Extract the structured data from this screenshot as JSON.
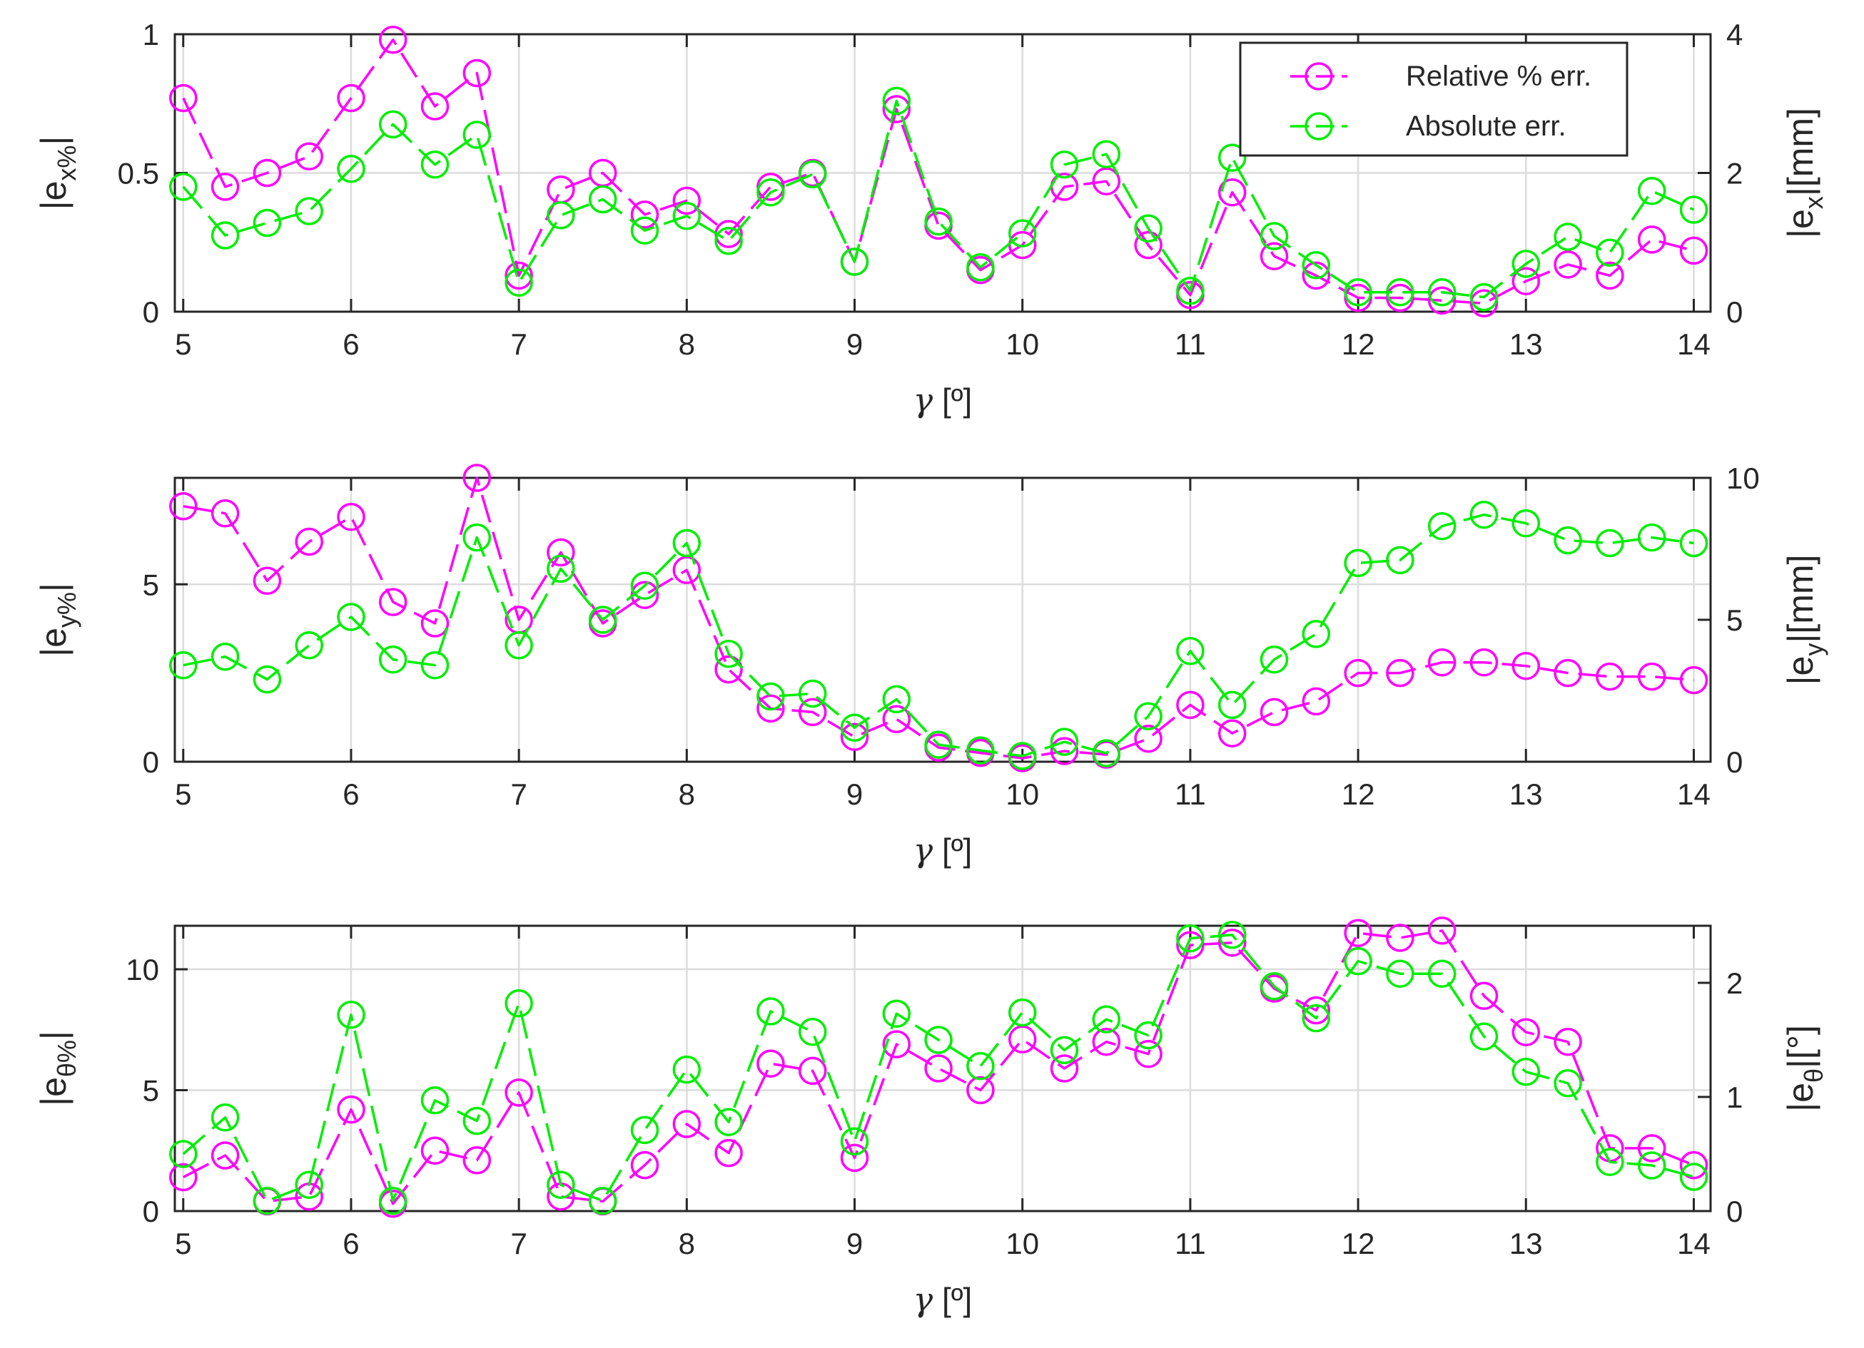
{
  "colors": {
    "relative": "#ff00ff",
    "absolute": "#00ee00",
    "grid": "#dcdcdc",
    "axis": "#262626"
  },
  "legend": {
    "relative": "Relative % err.",
    "absolute": "Absolute err.",
    "placement": "top-right"
  },
  "chart_data": [
    {
      "type": "line",
      "markers": "circle",
      "x": [
        5,
        5.25,
        5.5,
        5.75,
        6,
        6.25,
        6.5,
        6.75,
        7,
        7.25,
        7.5,
        7.75,
        8,
        8.25,
        8.5,
        8.75,
        9,
        9.25,
        9.5,
        9.75,
        10,
        10.25,
        10.5,
        10.75,
        11,
        11.25,
        11.5,
        11.75,
        12,
        12.25,
        12.5,
        12.75,
        13,
        13.25,
        13.5,
        13.75,
        14
      ],
      "xlim": [
        4.95,
        14.1
      ],
      "xticks": [
        5,
        6,
        7,
        8,
        9,
        10,
        11,
        12,
        13,
        14
      ],
      "xlabel": {
        "symbol": "γ",
        "unit": "[º]"
      },
      "ylabel_left": {
        "base": "|e",
        "sub": "x%",
        "end": "|"
      },
      "ylabel_right": {
        "base": "|e",
        "sub": "x",
        "end": "|[mm]"
      },
      "ylim_left": [
        0,
        1
      ],
      "yticks_left": [
        0,
        0.5,
        1
      ],
      "ylim_right": [
        0,
        4
      ],
      "yticks_right": [
        0,
        2,
        4
      ],
      "series": [
        {
          "name": "Relative % err.",
          "axis": "left",
          "values": [
            0.77,
            0.45,
            0.5,
            0.56,
            0.77,
            0.98,
            0.74,
            0.86,
            0.13,
            0.44,
            0.5,
            0.35,
            0.4,
            0.28,
            0.45,
            0.5,
            0.18,
            0.73,
            0.31,
            0.15,
            0.24,
            0.45,
            0.47,
            0.24,
            0.06,
            0.43,
            0.2,
            0.13,
            0.05,
            0.05,
            0.04,
            0.03,
            0.11,
            0.17,
            0.13,
            0.26,
            0.22
          ]
        },
        {
          "name": "Absolute err.",
          "axis": "right",
          "values": [
            1.8,
            1.1,
            1.28,
            1.45,
            2.06,
            2.7,
            2.12,
            2.55,
            0.42,
            1.39,
            1.62,
            1.17,
            1.38,
            1.02,
            1.72,
            1.98,
            0.72,
            3.04,
            1.3,
            0.64,
            1.13,
            2.12,
            2.27,
            1.2,
            0.3,
            2.22,
            1.09,
            0.67,
            0.28,
            0.28,
            0.28,
            0.21,
            0.69,
            1.08,
            0.85,
            1.74,
            1.47
          ]
        }
      ]
    },
    {
      "type": "line",
      "markers": "circle",
      "x": [
        5,
        5.25,
        5.5,
        5.75,
        6,
        6.25,
        6.5,
        6.75,
        7,
        7.25,
        7.5,
        7.75,
        8,
        8.25,
        8.5,
        8.75,
        9,
        9.25,
        9.5,
        9.75,
        10,
        10.25,
        10.5,
        10.75,
        11,
        11.25,
        11.5,
        11.75,
        12,
        12.25,
        12.5,
        12.75,
        13,
        13.25,
        13.5,
        13.75,
        14
      ],
      "xlim": [
        4.95,
        14.1
      ],
      "xticks": [
        5,
        6,
        7,
        8,
        9,
        10,
        11,
        12,
        13,
        14
      ],
      "xlabel": {
        "symbol": "γ",
        "unit": "[º]"
      },
      "ylabel_left": {
        "base": "|e",
        "sub": "y%",
        "end": "|"
      },
      "ylabel_right": {
        "base": "|e",
        "sub": "y",
        "end": "|[mm]"
      },
      "ylim_left": [
        0,
        8
      ],
      "yticks_left": [
        0,
        5
      ],
      "ylim_right": [
        0,
        10
      ],
      "yticks_right": [
        0,
        5,
        10
      ],
      "series": [
        {
          "name": "Relative % err.",
          "axis": "left",
          "values": [
            7.2,
            7.0,
            5.1,
            6.2,
            6.9,
            4.5,
            3.9,
            8.0,
            4.0,
            5.9,
            3.9,
            4.7,
            5.4,
            2.6,
            1.5,
            1.4,
            0.7,
            1.2,
            0.4,
            0.25,
            0.1,
            0.3,
            0.2,
            0.65,
            1.6,
            0.8,
            1.4,
            1.7,
            2.5,
            2.5,
            2.8,
            2.8,
            2.7,
            2.5,
            2.4,
            2.4,
            2.3
          ]
        },
        {
          "name": "Absolute err.",
          "axis": "right",
          "values": [
            3.4,
            3.7,
            2.9,
            4.1,
            5.1,
            3.6,
            3.4,
            7.9,
            4.1,
            6.8,
            5.0,
            6.2,
            7.7,
            3.8,
            2.3,
            2.4,
            1.2,
            2.2,
            0.6,
            0.4,
            0.2,
            0.7,
            0.3,
            1.6,
            3.9,
            2.0,
            3.6,
            4.5,
            7.0,
            7.1,
            8.3,
            8.7,
            8.4,
            7.8,
            7.7,
            7.9,
            7.7
          ]
        }
      ]
    },
    {
      "type": "line",
      "markers": "circle",
      "x": [
        5,
        5.25,
        5.5,
        5.75,
        6,
        6.25,
        6.5,
        6.75,
        7,
        7.25,
        7.5,
        7.75,
        8,
        8.25,
        8.5,
        8.75,
        9,
        9.25,
        9.5,
        9.75,
        10,
        10.25,
        10.5,
        10.75,
        11,
        11.25,
        11.5,
        11.75,
        12,
        12.25,
        12.5,
        12.75,
        13,
        13.25,
        13.5,
        13.75,
        14
      ],
      "xlim": [
        4.95,
        14.1
      ],
      "xticks": [
        5,
        6,
        7,
        8,
        9,
        10,
        11,
        12,
        13,
        14
      ],
      "xlabel": {
        "symbol": "γ",
        "unit": "[º]"
      },
      "ylabel_left": {
        "base": "|e",
        "sub": "θ%",
        "end": "|"
      },
      "ylabel_right": {
        "base": "|e",
        "sub": "θ",
        "end": "|[°]"
      },
      "ylim_left": [
        0,
        11.8
      ],
      "yticks_left": [
        0,
        5,
        10
      ],
      "ylim_right": [
        0,
        2.5
      ],
      "yticks_right": [
        0,
        1,
        2
      ],
      "series": [
        {
          "name": "Relative % err.",
          "axis": "left",
          "values": [
            1.4,
            2.3,
            0.4,
            0.6,
            4.2,
            0.3,
            2.5,
            2.1,
            4.9,
            0.6,
            0.4,
            1.9,
            3.6,
            2.4,
            6.1,
            5.8,
            2.2,
            6.9,
            5.9,
            5.0,
            7.1,
            5.9,
            7.0,
            6.5,
            11.0,
            11.1,
            9.2,
            8.3,
            11.5,
            11.3,
            11.6,
            8.9,
            7.4,
            7.0,
            2.6,
            2.6,
            1.9
          ]
        },
        {
          "name": "Absolute err.",
          "axis": "right",
          "values": [
            0.5,
            0.82,
            0.09,
            0.23,
            1.72,
            0.09,
            0.97,
            0.79,
            1.82,
            0.23,
            0.09,
            0.71,
            1.24,
            0.78,
            1.75,
            1.57,
            0.61,
            1.73,
            1.5,
            1.27,
            1.74,
            1.41,
            1.68,
            1.54,
            2.39,
            2.42,
            1.97,
            1.69,
            2.19,
            2.08,
            2.08,
            1.53,
            1.22,
            1.12,
            0.43,
            0.4,
            0.3
          ]
        }
      ]
    }
  ]
}
